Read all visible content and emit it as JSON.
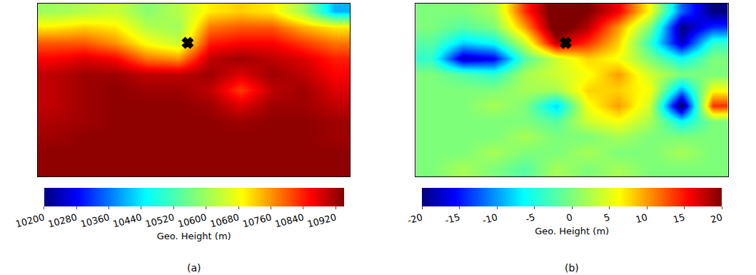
{
  "chart_data": [
    {
      "type": "heatmap",
      "panel": "(a)",
      "x": [
        -100,
        -90,
        -80,
        -70,
        -60,
        -50,
        -40,
        -30,
        -20,
        -10
      ],
      "y": [
        5,
        10,
        15,
        20,
        25,
        30,
        35,
        40,
        45,
        50,
        55
      ],
      "z": [
        [
          10930,
          10930,
          10930,
          10930,
          10930,
          10930,
          10930,
          10930,
          10930,
          10930
        ],
        [
          10930,
          10930,
          10930,
          10930,
          10930,
          10930,
          10930,
          10930,
          10930,
          10930
        ],
        [
          10920,
          10930,
          10930,
          10930,
          10930,
          10930,
          10930,
          10930,
          10930,
          10920
        ],
        [
          10910,
          10920,
          10930,
          10930,
          10930,
          10930,
          10920,
          10930,
          10930,
          10920
        ],
        [
          10900,
          10920,
          10930,
          10930,
          10930,
          10920,
          10880,
          10920,
          10920,
          10900
        ],
        [
          10900,
          10920,
          10930,
          10920,
          10920,
          10900,
          10820,
          10900,
          10920,
          10880
        ],
        [
          10900,
          10920,
          10920,
          10900,
          10900,
          10920,
          10880,
          10920,
          10900,
          10860
        ],
        [
          10860,
          10880,
          10860,
          10780,
          10760,
          10900,
          10920,
          10900,
          10880,
          10840
        ],
        [
          10800,
          10800,
          10760,
          10680,
          10640,
          10840,
          10860,
          10860,
          10820,
          10780
        ],
        [
          10700,
          10720,
          10700,
          10620,
          10600,
          10780,
          10800,
          10800,
          10740,
          10700
        ],
        [
          10600,
          10620,
          10640,
          10580,
          10620,
          10700,
          10720,
          10700,
          10600,
          10400
        ]
      ],
      "xlim": [
        -105,
        -5
      ],
      "ylim": [
        2.5,
        57.5
      ],
      "tick_labels": false,
      "points": {
        "x": [
          -57
        ],
        "y": [
          45
        ],
        "marker": "x",
        "color": "#000000"
      },
      "colorbar": {
        "title": "Geo. Height (m)",
        "range": [
          10200,
          10940
        ],
        "ticks": [
          10200,
          10280,
          10360,
          10440,
          10520,
          10600,
          10680,
          10760,
          10840,
          10920
        ]
      }
    },
    {
      "type": "heatmap",
      "panel": "(b)",
      "x": [
        -100,
        -90,
        -80,
        -70,
        -60,
        -50,
        -40,
        -30,
        -20,
        -10
      ],
      "y": [
        5,
        10,
        15,
        20,
        25,
        30,
        35,
        40,
        45,
        50,
        55
      ],
      "z": [
        [
          0,
          2,
          0,
          -2,
          2,
          0,
          2,
          0,
          0,
          0
        ],
        [
          0,
          0,
          2,
          0,
          0,
          2,
          0,
          0,
          2,
          0
        ],
        [
          0,
          0,
          0,
          2,
          0,
          0,
          2,
          0,
          0,
          0
        ],
        [
          0,
          0,
          0,
          0,
          -2,
          4,
          6,
          2,
          -6,
          0
        ],
        [
          0,
          0,
          2,
          0,
          -8,
          6,
          10,
          4,
          -22,
          14
        ],
        [
          0,
          0,
          0,
          2,
          2,
          8,
          8,
          6,
          -10,
          6
        ],
        [
          0,
          -2,
          -4,
          2,
          4,
          6,
          10,
          4,
          0,
          0
        ],
        [
          -4,
          -18,
          -16,
          -2,
          4,
          8,
          6,
          0,
          -6,
          0
        ],
        [
          -2,
          -8,
          -6,
          4,
          18,
          14,
          8,
          -4,
          -18,
          -4
        ],
        [
          0,
          -2,
          0,
          10,
          22,
          18,
          10,
          0,
          -20,
          -14
        ],
        [
          0,
          0,
          2,
          14,
          22,
          20,
          16,
          6,
          -12,
          -20
        ]
      ],
      "xlim": [
        -105,
        -5
      ],
      "ylim": [
        2.5,
        57.5
      ],
      "tick_labels": false,
      "points": {
        "x": [
          -57
        ],
        "y": [
          45
        ],
        "marker": "x",
        "color": "#000000"
      },
      "colorbar": {
        "title": "Geo. Height (m)",
        "range": [
          -20,
          20
        ],
        "ticks": [
          -20,
          -15,
          -10,
          -5,
          0,
          5,
          10,
          15,
          20
        ]
      }
    }
  ]
}
